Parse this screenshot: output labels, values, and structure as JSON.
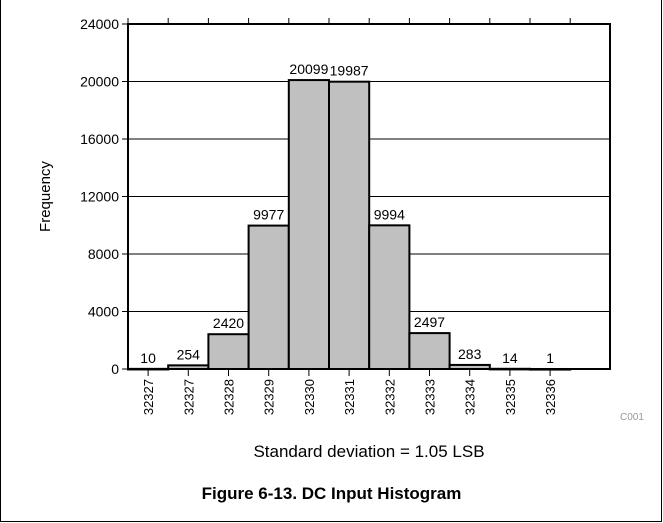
{
  "figure": {
    "caption": "Figure 6-13. DC Input Histogram",
    "code": "C001"
  },
  "chart_data": {
    "type": "bar",
    "categories": [
      "32327",
      "32327",
      "32328",
      "32329",
      "32330",
      "32331",
      "32332",
      "32333",
      "32334",
      "32335",
      "32336"
    ],
    "values": [
      10,
      254,
      2420,
      9977,
      20099,
      19987,
      9994,
      2497,
      283,
      14,
      1
    ],
    "data_labels": [
      "10",
      "254",
      "2420",
      "9977",
      "20099",
      "19987",
      "9994",
      "2497",
      "283",
      "14",
      "1"
    ],
    "ylabel": "Frequency",
    "xlabel": "Standard deviation = 1.05 LSB",
    "ylim": [
      0,
      24000
    ],
    "yticks": [
      0,
      4000,
      8000,
      12000,
      16000,
      20000,
      24000
    ],
    "grid": "horizontal",
    "bar_color": "#c0c0c0"
  }
}
